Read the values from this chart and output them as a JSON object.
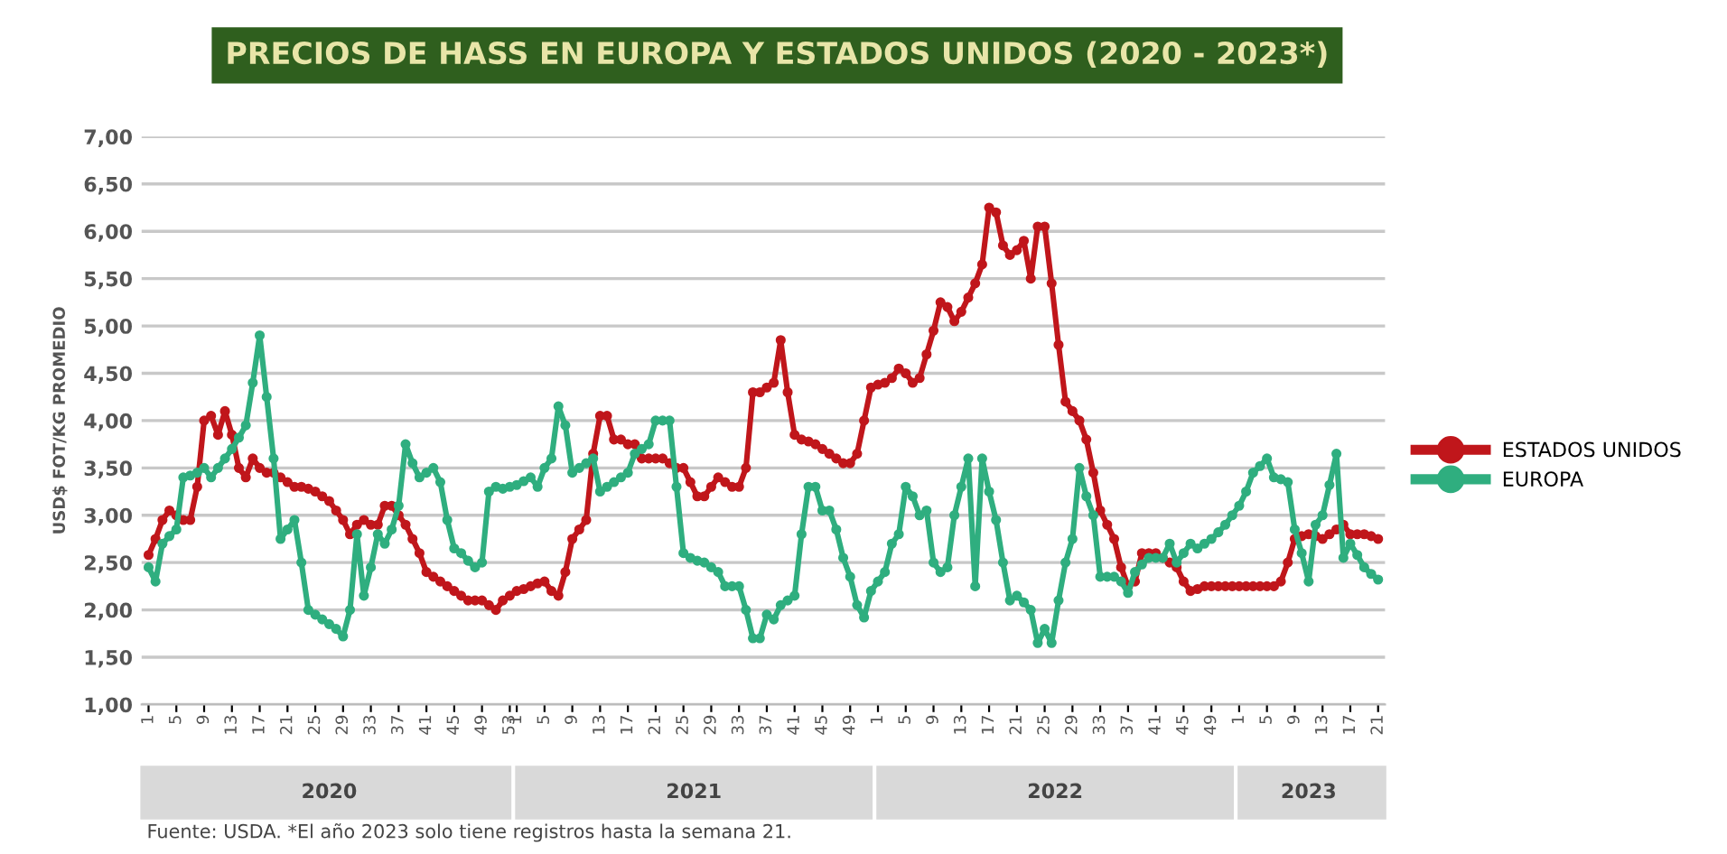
{
  "chart_data": {
    "type": "line",
    "title": "PRECIOS DE HASS EN EUROPA Y ESTADOS UNIDOS (2020 - 2023*)",
    "ylabel": "USD$ FOT/KG PROMEDIO",
    "annotations": [
      "2020",
      "2021",
      "2022",
      "2023",
      "Fuente: USDA. *El año 2023 solo tiene registros hasta la semana 21."
    ],
    "categories": [
      "1",
      null,
      null,
      null,
      "5",
      null,
      null,
      null,
      "9",
      null,
      null,
      null,
      "13",
      null,
      null,
      null,
      "17",
      null,
      null,
      null,
      "21",
      null,
      null,
      null,
      "25",
      null,
      null,
      null,
      "29",
      null,
      null,
      null,
      "33",
      null,
      null,
      null,
      "37",
      null,
      null,
      null,
      "41",
      null,
      null,
      null,
      "45",
      null,
      null,
      null,
      "49",
      null,
      null,
      null,
      "53",
      "1",
      null,
      null,
      null,
      "5",
      null,
      null,
      null,
      "9",
      null,
      null,
      null,
      "13",
      null,
      null,
      null,
      "17",
      null,
      null,
      null,
      "21",
      null,
      null,
      null,
      "25",
      null,
      null,
      null,
      "29",
      null,
      null,
      null,
      "33",
      null,
      null,
      null,
      "37",
      null,
      null,
      null,
      "41",
      null,
      null,
      null,
      "45",
      null,
      null,
      null,
      "49",
      null,
      null,
      null,
      "1",
      null,
      null,
      null,
      "5",
      null,
      null,
      null,
      "9",
      null,
      null,
      null,
      "13",
      null,
      null,
      null,
      "17",
      null,
      null,
      null,
      "21",
      null,
      null,
      null,
      "25",
      null,
      null,
      null,
      "29",
      null,
      null,
      null,
      "33",
      null,
      null,
      null,
      "37",
      null,
      null,
      null,
      "41",
      null,
      null,
      null,
      "45",
      null,
      null,
      null,
      "49",
      null,
      null,
      null,
      "1",
      null,
      null,
      null,
      "5",
      null,
      null,
      null,
      "9",
      null,
      null,
      null,
      "13",
      null,
      null,
      null,
      "17",
      null,
      null,
      null,
      "21"
    ],
    "series": [
      {
        "name": "ESTADOS UNIDOS",
        "color": "#c0161b",
        "values": [
          2.58,
          2.75,
          2.95,
          3.05,
          3.0,
          2.95,
          2.95,
          3.3,
          4.0,
          4.05,
          3.85,
          4.1,
          3.85,
          3.5,
          3.4,
          3.6,
          3.5,
          3.45,
          3.45,
          3.4,
          3.35,
          3.3,
          3.3,
          3.28,
          3.25,
          3.2,
          3.15,
          3.05,
          2.95,
          2.8,
          2.9,
          2.95,
          2.9,
          2.9,
          3.1,
          3.1,
          3.0,
          2.9,
          2.75,
          2.6,
          2.4,
          2.35,
          2.3,
          2.25,
          2.2,
          2.15,
          2.1,
          2.1,
          2.1,
          2.05,
          2.0,
          2.1,
          2.15,
          2.2,
          2.22,
          2.25,
          2.28,
          2.3,
          2.2,
          2.15,
          2.4,
          2.75,
          2.85,
          2.95,
          3.65,
          4.05,
          4.05,
          3.8,
          3.8,
          3.75,
          3.75,
          3.6,
          3.6,
          3.6,
          3.6,
          3.55,
          3.5,
          3.5,
          3.35,
          3.2,
          3.2,
          3.3,
          3.4,
          3.35,
          3.3,
          3.3,
          3.5,
          4.3,
          4.3,
          4.35,
          4.4,
          4.85,
          4.3,
          3.85,
          3.8,
          3.78,
          3.75,
          3.7,
          3.65,
          3.6,
          3.55,
          3.55,
          3.65,
          4.0,
          4.35,
          4.38,
          4.4,
          4.45,
          4.55,
          4.5,
          4.4,
          4.45,
          4.7,
          4.95,
          5.25,
          5.2,
          5.05,
          5.15,
          5.3,
          5.45,
          5.65,
          6.25,
          6.2,
          5.85,
          5.75,
          5.8,
          5.9,
          5.5,
          6.05,
          6.05,
          5.45,
          4.8,
          4.2,
          4.1,
          4.0,
          3.8,
          3.45,
          3.05,
          2.9,
          2.75,
          2.45,
          2.25,
          2.3,
          2.6,
          2.6,
          2.6,
          2.55,
          2.5,
          2.45,
          2.3,
          2.2,
          2.22,
          2.25,
          2.25,
          2.25,
          2.25,
          2.25,
          2.25,
          2.25,
          2.25,
          2.25,
          2.25,
          2.25,
          2.3,
          2.5,
          2.75,
          2.78,
          2.8,
          2.78,
          2.75,
          2.8,
          2.85,
          2.9,
          2.8,
          2.8,
          2.8,
          2.78,
          2.75
        ]
      },
      {
        "name": "EUROPA",
        "color": "#2fae7f",
        "values": [
          2.45,
          2.3,
          2.7,
          2.78,
          2.85,
          3.4,
          3.42,
          3.45,
          3.5,
          3.4,
          3.5,
          3.6,
          3.7,
          3.82,
          3.95,
          4.4,
          4.9,
          4.25,
          3.6,
          2.75,
          2.85,
          2.95,
          2.5,
          2.0,
          1.95,
          1.9,
          1.85,
          1.8,
          1.72,
          2.0,
          2.8,
          2.15,
          2.45,
          2.8,
          2.7,
          2.85,
          3.1,
          3.75,
          3.55,
          3.4,
          3.45,
          3.5,
          3.35,
          2.95,
          2.65,
          2.6,
          2.52,
          2.45,
          2.5,
          3.25,
          3.3,
          3.28,
          3.3,
          3.32,
          3.36,
          3.4,
          3.3,
          3.5,
          3.6,
          4.15,
          3.95,
          3.45,
          3.5,
          3.55,
          3.6,
          3.25,
          3.3,
          3.35,
          3.4,
          3.45,
          3.65,
          3.7,
          3.75,
          4.0,
          4.0,
          4.0,
          3.3,
          2.6,
          2.55,
          2.52,
          2.5,
          2.45,
          2.4,
          2.25,
          2.25,
          2.25,
          2.0,
          1.7,
          1.7,
          1.95,
          1.9,
          2.05,
          2.1,
          2.15,
          2.8,
          3.3,
          3.3,
          3.05,
          3.05,
          2.85,
          2.55,
          2.35,
          2.05,
          1.92,
          2.2,
          2.3,
          2.4,
          2.7,
          2.8,
          3.3,
          3.2,
          3.0,
          3.05,
          2.5,
          2.4,
          2.45,
          3.0,
          3.3,
          3.6,
          2.25,
          3.6,
          3.25,
          2.95,
          2.5,
          2.1,
          2.15,
          2.08,
          2.0,
          1.65,
          1.8,
          1.65,
          2.1,
          2.5,
          2.75,
          3.5,
          3.2,
          3.0,
          2.35,
          2.35,
          2.35,
          2.3,
          2.18,
          2.4,
          2.48,
          2.55,
          2.55,
          2.55,
          2.7,
          2.5,
          2.6,
          2.7,
          2.65,
          2.7,
          2.75,
          2.82,
          2.9,
          3.0,
          3.1,
          3.25,
          3.45,
          3.52,
          3.6,
          3.4,
          3.38,
          3.35,
          2.85,
          2.6,
          2.3,
          2.9,
          3.0,
          3.32,
          3.65,
          2.55,
          2.7,
          2.58,
          2.45,
          2.38,
          2.32
        ]
      }
    ],
    "ylim": [
      1,
      7
    ],
    "yticks": [
      {
        "value": 1,
        "label": "1,00"
      },
      {
        "value": 1.5,
        "label": "1,50"
      },
      {
        "value": 2,
        "label": "2,00"
      },
      {
        "value": 2.5,
        "label": "2,50"
      },
      {
        "value": 3,
        "label": "3,00"
      },
      {
        "value": 3.5,
        "label": "3,50"
      },
      {
        "value": 4,
        "label": "4,00"
      },
      {
        "value": 4.5,
        "label": "4,50"
      },
      {
        "value": 5,
        "label": "5,00"
      },
      {
        "value": 5.5,
        "label": "5,50"
      },
      {
        "value": 6,
        "label": "6,00"
      },
      {
        "value": 6.5,
        "label": "6,50"
      },
      {
        "value": 7,
        "label": "7,00"
      }
    ],
    "grid": "y",
    "legend": "right",
    "marker": "circle",
    "line_style": "solid"
  }
}
